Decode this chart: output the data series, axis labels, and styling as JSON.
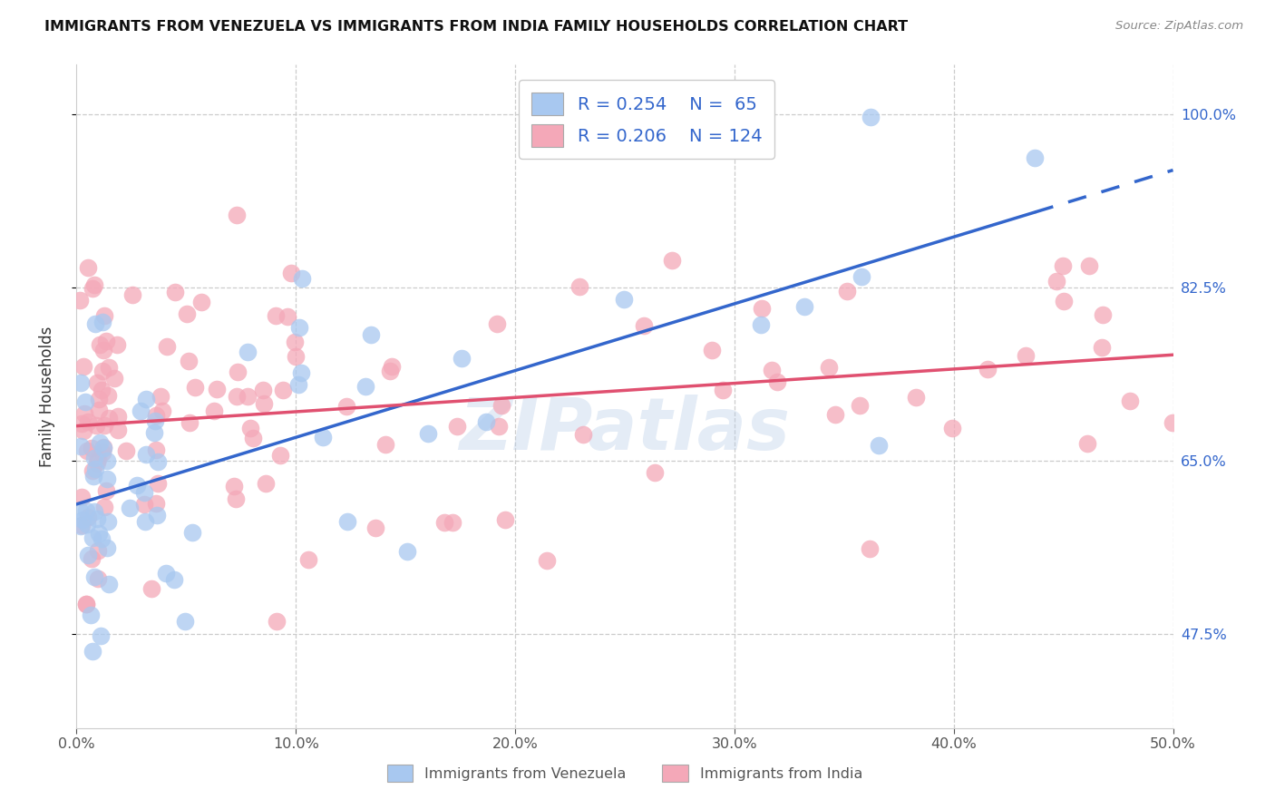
{
  "title": "IMMIGRANTS FROM VENEZUELA VS IMMIGRANTS FROM INDIA FAMILY HOUSEHOLDS CORRELATION CHART",
  "source": "Source: ZipAtlas.com",
  "ylabel": "Family Households",
  "xlim": [
    0.0,
    0.5
  ],
  "ylim": [
    0.38,
    1.05
  ],
  "xtick_labels": [
    "0.0%",
    "10.0%",
    "20.0%",
    "30.0%",
    "40.0%",
    "50.0%"
  ],
  "xtick_values": [
    0.0,
    0.1,
    0.2,
    0.3,
    0.4,
    0.5
  ],
  "ytick_labels": [
    "47.5%",
    "65.0%",
    "82.5%",
    "100.0%"
  ],
  "ytick_values": [
    0.475,
    0.65,
    0.825,
    1.0
  ],
  "blue_color": "#A8C8F0",
  "pink_color": "#F4A8B8",
  "blue_line_color": "#3366CC",
  "pink_line_color": "#E05070",
  "R_blue": 0.254,
  "N_blue": 65,
  "R_pink": 0.206,
  "N_pink": 124,
  "legend_label_blue": "Immigrants from Venezuela",
  "legend_label_pink": "Immigrants from India",
  "watermark": "ZIPatlas",
  "blue_scatter_edgecolor": "none",
  "pink_scatter_edgecolor": "none"
}
